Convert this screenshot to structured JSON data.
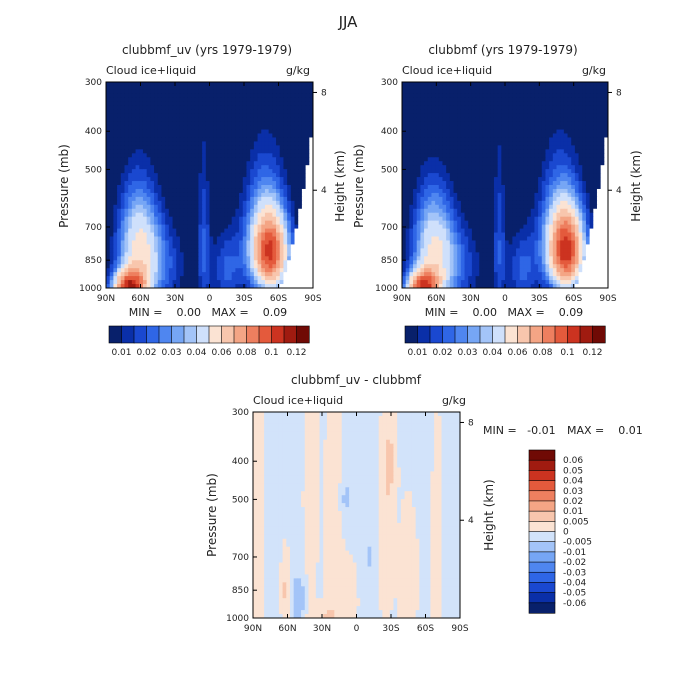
{
  "page_title": "JJA",
  "palette": {
    "main": [
      "#08206b",
      "#0a2fa8",
      "#1a48d0",
      "#2f66e6",
      "#4f86f0",
      "#76a6f5",
      "#a3c4f8",
      "#cfe0fb",
      "#fbe3d3",
      "#f8c6ad",
      "#f4a585",
      "#ee7f5f",
      "#e45a3c",
      "#cc3320",
      "#a01b10",
      "#700a05"
    ],
    "diff": [
      "#08206b",
      "#0a2fa8",
      "#1a48d0",
      "#2f66e6",
      "#4f86f0",
      "#76a6f5",
      "#a3c4f8",
      "#d2e3fa",
      "#fbe3d3",
      "#f8c6ad",
      "#f4a585",
      "#ee7f5f",
      "#e45a3c",
      "#cc3320",
      "#a01b10",
      "#700a05"
    ]
  },
  "chart_data": [
    {
      "type": "heatmap",
      "name": "top-left",
      "title": "clubbmf_uv (yrs 1979-1979)",
      "subtitle_left": "Cloud ice+liquid",
      "units": "g/kg",
      "ylabel": "Pressure (mb)",
      "ylabel_right": "Height (km)",
      "x_ticks": [
        "90N",
        "60N",
        "30N",
        "0",
        "30S",
        "60S",
        "90S"
      ],
      "y_ticks": [
        "300",
        "400",
        "500",
        "700",
        "850",
        "1000"
      ],
      "y_ticks_right": [
        "8",
        "4"
      ],
      "stats": "MIN =    0.00   MAX =    0.09",
      "colorbar_labels": [
        "0.01",
        "0.02",
        "0.03",
        "0.04",
        "0.06",
        "0.08",
        "0.1",
        "0.12"
      ],
      "levels": [
        0.01,
        0.015,
        0.02,
        0.025,
        0.03,
        0.035,
        0.04,
        0.05,
        0.06,
        0.07,
        0.08,
        0.09,
        0.1,
        0.11,
        0.12
      ],
      "blobs": [
        {
          "lat": 70,
          "p": 1000,
          "amp": 0.09,
          "sx": 10,
          "sy": 70
        },
        {
          "lat": 62,
          "p": 780,
          "amp": 0.045,
          "sx": 13,
          "sy": 190
        },
        {
          "lat": 45,
          "p": 880,
          "amp": 0.02,
          "sx": 18,
          "sy": 160
        },
        {
          "lat": 5,
          "p": 750,
          "amp": 0.018,
          "sx": 4,
          "sy": 300
        },
        {
          "lat": -15,
          "p": 900,
          "amp": 0.02,
          "sx": 10,
          "sy": 150
        },
        {
          "lat": -53,
          "p": 820,
          "amp": 0.08,
          "sx": 11,
          "sy": 130
        },
        {
          "lat": -48,
          "p": 700,
          "amp": 0.03,
          "sx": 14,
          "sy": 200
        }
      ]
    },
    {
      "type": "heatmap",
      "name": "top-right",
      "title": "clubbmf (yrs 1979-1979)",
      "subtitle_left": "Cloud ice+liquid",
      "units": "g/kg",
      "ylabel": "Pressure (mb)",
      "ylabel_right": "Height (km)",
      "x_ticks": [
        "90N",
        "60N",
        "30N",
        "0",
        "30S",
        "60S",
        "90S"
      ],
      "y_ticks": [
        "300",
        "400",
        "500",
        "700",
        "850",
        "1000"
      ],
      "y_ticks_right": [
        "8",
        "4"
      ],
      "stats": "MIN =    0.00   MAX =    0.09",
      "colorbar_labels": [
        "0.01",
        "0.02",
        "0.03",
        "0.04",
        "0.06",
        "0.08",
        "0.1",
        "0.12"
      ],
      "levels": [
        0.01,
        0.015,
        0.02,
        0.025,
        0.03,
        0.035,
        0.04,
        0.05,
        0.06,
        0.07,
        0.08,
        0.09,
        0.1,
        0.11,
        0.12
      ],
      "blobs": [
        {
          "lat": 72,
          "p": 1000,
          "amp": 0.085,
          "sx": 10,
          "sy": 70
        },
        {
          "lat": 63,
          "p": 790,
          "amp": 0.043,
          "sx": 13,
          "sy": 190
        },
        {
          "lat": 45,
          "p": 880,
          "amp": 0.02,
          "sx": 18,
          "sy": 160
        },
        {
          "lat": 5,
          "p": 750,
          "amp": 0.017,
          "sx": 4,
          "sy": 300
        },
        {
          "lat": -15,
          "p": 900,
          "amp": 0.02,
          "sx": 10,
          "sy": 150
        },
        {
          "lat": -54,
          "p": 810,
          "amp": 0.085,
          "sx": 11,
          "sy": 130
        },
        {
          "lat": -48,
          "p": 700,
          "amp": 0.03,
          "sx": 14,
          "sy": 200
        }
      ]
    },
    {
      "type": "heatmap",
      "name": "difference",
      "title": "clubbmf_uv - clubbmf",
      "subtitle_left": "Cloud ice+liquid",
      "units": "g/kg",
      "ylabel": "Pressure (mb)",
      "ylabel_right": "Height (km)",
      "x_ticks": [
        "90N",
        "60N",
        "30N",
        "0",
        "30S",
        "60S",
        "90S"
      ],
      "y_ticks": [
        "300",
        "400",
        "500",
        "700",
        "850",
        "1000"
      ],
      "y_ticks_right": [
        "8",
        "4"
      ],
      "stats_min": "MIN =   -0.01",
      "stats_max": "MAX =    0.01",
      "colorbar_labels": [
        "0.06",
        "0.05",
        "0.04",
        "0.03",
        "0.02",
        "0.01",
        "0.005",
        "0",
        "-0.005",
        "-0.01",
        "-0.02",
        "-0.03",
        "-0.04",
        "-0.05",
        "-0.06"
      ],
      "levels": [
        -0.06,
        -0.05,
        -0.04,
        -0.03,
        -0.02,
        -0.01,
        -0.005,
        0,
        0.005,
        0.01,
        0.02,
        0.03,
        0.04,
        0.05,
        0.06
      ],
      "blobs": [
        {
          "lat": 85,
          "p": 650,
          "amp": 0.006,
          "sx": 4,
          "sy": 400
        },
        {
          "lat": 62,
          "p": 850,
          "amp": 0.008,
          "sx": 3,
          "sy": 150
        },
        {
          "lat": 50,
          "p": 900,
          "amp": -0.008,
          "sx": 4,
          "sy": 80
        },
        {
          "lat": 40,
          "p": 500,
          "amp": 0.006,
          "sx": 5,
          "sy": 300
        },
        {
          "lat": 20,
          "p": 650,
          "amp": 0.006,
          "sx": 6,
          "sy": 450
        },
        {
          "lat": 5,
          "p": 900,
          "amp": 0.006,
          "sx": 5,
          "sy": 150
        },
        {
          "lat": -25,
          "p": 650,
          "amp": 0.006,
          "sx": 5,
          "sy": 300
        },
        {
          "lat": -45,
          "p": 800,
          "amp": 0.006,
          "sx": 7,
          "sy": 250
        },
        {
          "lat": -30,
          "p": 400,
          "amp": 0.006,
          "sx": 4,
          "sy": 80
        },
        {
          "lat": -70,
          "p": 720,
          "amp": 0.006,
          "sx": 4,
          "sy": 350
        },
        {
          "lat": 30,
          "p": 1000,
          "amp": 0.006,
          "sx": 10,
          "sy": 60
        },
        {
          "lat": -12,
          "p": 700,
          "amp": -0.006,
          "sx": 2,
          "sy": 30
        },
        {
          "lat": 10,
          "p": 500,
          "amp": -0.005,
          "sx": 3,
          "sy": 50
        }
      ]
    }
  ]
}
